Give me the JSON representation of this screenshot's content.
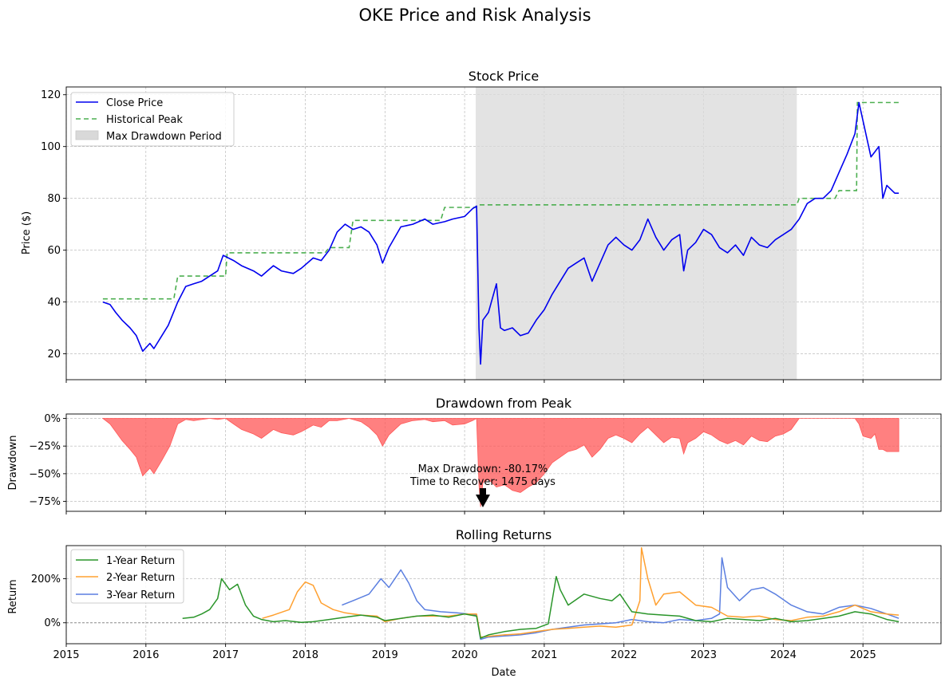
{
  "figure": {
    "title": "OKE Price and Risk Analysis",
    "xlabel": "Date"
  },
  "colors": {
    "close": "#0000ee",
    "peak": "#4caf50",
    "shade": "#d9d9d9",
    "drawdown": "#ff5555",
    "ret1": "#2a952a",
    "ret2": "#ffa030",
    "ret3": "#5b7fe0",
    "grid": "#b0b0b0"
  },
  "chart_data": [
    {
      "type": "line",
      "title": "Stock Price",
      "ylabel": "Price ($)",
      "xlim": [
        2015.0,
        2025.98
      ],
      "ylim": [
        10,
        123
      ],
      "yticks": [
        20,
        40,
        60,
        80,
        100,
        120
      ],
      "xticks": [
        2015,
        2016,
        2017,
        2018,
        2019,
        2020,
        2021,
        2022,
        2023,
        2024,
        2025
      ],
      "grid": true,
      "legend_position": "top-left",
      "legend": [
        "Close Price",
        "Historical Peak",
        "Max Drawdown Period"
      ],
      "shaded_region": {
        "name": "Max Drawdown Period",
        "x": [
          2020.14,
          2024.17
        ]
      },
      "series": [
        {
          "name": "Close Price",
          "x": [
            2015.46,
            2015.55,
            2015.62,
            2015.7,
            2015.8,
            2015.88,
            2015.96,
            2016.05,
            2016.1,
            2016.2,
            2016.28,
            2016.4,
            2016.5,
            2016.6,
            2016.7,
            2016.8,
            2016.9,
            2016.97,
            2017.1,
            2017.2,
            2017.35,
            2017.45,
            2017.6,
            2017.7,
            2017.85,
            2017.95,
            2018.1,
            2018.2,
            2018.3,
            2018.4,
            2018.5,
            2018.6,
            2018.7,
            2018.8,
            2018.9,
            2018.97,
            2019.05,
            2019.2,
            2019.35,
            2019.5,
            2019.6,
            2019.75,
            2019.85,
            2020.0,
            2020.1,
            2020.15,
            2020.18,
            2020.2,
            2020.23,
            2020.3,
            2020.4,
            2020.45,
            2020.5,
            2020.6,
            2020.7,
            2020.8,
            2020.9,
            2021.0,
            2021.1,
            2021.2,
            2021.3,
            2021.4,
            2021.5,
            2021.6,
            2021.7,
            2021.8,
            2021.9,
            2022.0,
            2022.1,
            2022.2,
            2022.3,
            2022.4,
            2022.5,
            2022.6,
            2022.7,
            2022.75,
            2022.8,
            2022.9,
            2023.0,
            2023.1,
            2023.2,
            2023.3,
            2023.4,
            2023.5,
            2023.6,
            2023.7,
            2023.8,
            2023.9,
            2024.0,
            2024.1,
            2024.2,
            2024.3,
            2024.4,
            2024.5,
            2024.6,
            2024.7,
            2024.8,
            2024.9,
            2024.95,
            2025.0,
            2025.1,
            2025.15,
            2025.2,
            2025.25,
            2025.3,
            2025.4,
            2025.45
          ],
          "values": [
            40,
            39,
            36,
            33,
            30,
            27,
            21,
            24,
            22,
            27,
            31,
            40,
            46,
            47,
            48,
            50,
            52,
            58,
            56,
            54,
            52,
            50,
            54,
            52,
            51,
            53,
            57,
            56,
            60,
            67,
            70,
            68,
            69,
            67,
            62,
            55,
            61,
            69,
            70,
            72,
            70,
            71,
            72,
            73,
            76,
            77,
            30,
            16,
            33,
            36,
            47,
            30,
            29,
            30,
            27,
            28,
            33,
            37,
            43,
            48,
            53,
            55,
            57,
            48,
            55,
            62,
            65,
            62,
            60,
            64,
            72,
            65,
            60,
            64,
            66,
            52,
            60,
            63,
            68,
            66,
            61,
            59,
            62,
            58,
            65,
            62,
            61,
            64,
            66,
            68,
            72,
            78,
            80,
            80,
            83,
            90,
            97,
            105,
            117,
            110,
            96,
            98,
            100,
            80,
            85,
            82,
            82
          ]
        },
        {
          "name": "Historical Peak",
          "x": [
            2015.46,
            2016.35,
            2016.4,
            2017.0,
            2017.02,
            2018.25,
            2018.3,
            2018.55,
            2018.6,
            2019.7,
            2019.75,
            2020.14,
            2020.16,
            2024.17,
            2024.2,
            2024.65,
            2024.7,
            2024.92,
            2024.93,
            2025.45
          ],
          "values": [
            41.2,
            41.2,
            50,
            50,
            59,
            59,
            61,
            61,
            71.5,
            71.5,
            76.5,
            76.5,
            77.5,
            77.5,
            80,
            80,
            83,
            83,
            117,
            117
          ]
        }
      ]
    },
    {
      "type": "area",
      "title": "Drawdown from Peak",
      "ylabel": "Drawdown",
      "xlim": [
        2015.0,
        2025.98
      ],
      "ylim": [
        -84,
        4
      ],
      "yticks": [
        0,
        -25,
        -50,
        -75
      ],
      "ytick_labels": [
        "0%",
        "−25%",
        "−50%",
        "−75%"
      ],
      "grid": true,
      "annotation": {
        "text": [
          "Max Drawdown: -80.17%",
          "Time to Recover: 1475 days"
        ],
        "x": 2020.2,
        "y": -80.17
      },
      "series": [
        {
          "name": "Drawdown",
          "x": [
            2015.46,
            2015.55,
            2015.62,
            2015.7,
            2015.8,
            2015.88,
            2015.96,
            2016.05,
            2016.1,
            2016.2,
            2016.3,
            2016.4,
            2016.5,
            2016.6,
            2016.7,
            2016.8,
            2016.9,
            2017.0,
            2017.1,
            2017.2,
            2017.35,
            2017.45,
            2017.6,
            2017.7,
            2017.85,
            2017.95,
            2018.1,
            2018.2,
            2018.3,
            2018.4,
            2018.55,
            2018.7,
            2018.8,
            2018.9,
            2018.97,
            2019.05,
            2019.2,
            2019.35,
            2019.5,
            2019.6,
            2019.75,
            2019.85,
            2020.0,
            2020.1,
            2020.15,
            2020.18,
            2020.2,
            2020.23,
            2020.3,
            2020.4,
            2020.5,
            2020.6,
            2020.7,
            2020.8,
            2020.9,
            2021.0,
            2021.1,
            2021.2,
            2021.3,
            2021.4,
            2021.5,
            2021.6,
            2021.7,
            2021.8,
            2021.9,
            2022.0,
            2022.1,
            2022.2,
            2022.3,
            2022.4,
            2022.5,
            2022.6,
            2022.7,
            2022.75,
            2022.8,
            2022.9,
            2023.0,
            2023.1,
            2023.2,
            2023.3,
            2023.4,
            2023.5,
            2023.6,
            2023.7,
            2023.8,
            2023.9,
            2024.0,
            2024.1,
            2024.2,
            2024.3,
            2024.5,
            2024.7,
            2024.9,
            2024.95,
            2025.0,
            2025.1,
            2025.15,
            2025.2,
            2025.25,
            2025.3,
            2025.4,
            2025.45
          ],
          "values": [
            0,
            -5,
            -12,
            -20,
            -28,
            -35,
            -52,
            -45,
            -50,
            -38,
            -25,
            -5,
            -1,
            -2,
            -1,
            0,
            -1,
            0,
            -5,
            -10,
            -14,
            -18,
            -10,
            -13,
            -15,
            -12,
            -6,
            -8,
            -2,
            -2,
            0,
            -3,
            -8,
            -15,
            -25,
            -15,
            -5,
            -2,
            -1,
            -3,
            -2,
            -6,
            -5,
            -2,
            0,
            -60,
            -80,
            -58,
            -55,
            -62,
            -60,
            -65,
            -67,
            -62,
            -58,
            -50,
            -40,
            -35,
            -30,
            -28,
            -24,
            -35,
            -28,
            -18,
            -15,
            -18,
            -22,
            -14,
            -8,
            -15,
            -22,
            -17,
            -18,
            -32,
            -22,
            -18,
            -12,
            -15,
            -20,
            -23,
            -20,
            -24,
            -16,
            -20,
            -21,
            -16,
            -14,
            -10,
            0,
            0,
            0,
            0,
            0,
            -5,
            -16,
            -18,
            -14,
            -28,
            -28,
            -30,
            -30,
            -30
          ]
        }
      ]
    },
    {
      "type": "line",
      "title": "Rolling Returns",
      "ylabel": "Return",
      "xlabel": "Date",
      "xlim": [
        2015.0,
        2025.98
      ],
      "ylim": [
        -95,
        350
      ],
      "yticks": [
        0,
        200
      ],
      "ytick_labels": [
        "0%",
        "200%"
      ],
      "xticks": [
        2015,
        2016,
        2017,
        2018,
        2019,
        2020,
        2021,
        2022,
        2023,
        2024,
        2025
      ],
      "grid": true,
      "legend_position": "top-left",
      "legend": [
        "1-Year Return",
        "2-Year Return",
        "3-Year Return"
      ],
      "series": [
        {
          "name": "1-Year Return",
          "x": [
            2016.46,
            2016.6,
            2016.7,
            2016.8,
            2016.9,
            2016.95,
            2017.05,
            2017.15,
            2017.25,
            2017.35,
            2017.45,
            2017.6,
            2017.75,
            2017.95,
            2018.1,
            2018.3,
            2018.5,
            2018.7,
            2018.9,
            2019.0,
            2019.2,
            2019.4,
            2019.6,
            2019.8,
            2020.0,
            2020.15,
            2020.2,
            2020.3,
            2020.5,
            2020.7,
            2020.9,
            2021.05,
            2021.15,
            2021.2,
            2021.3,
            2021.5,
            2021.7,
            2021.85,
            2021.95,
            2022.1,
            2022.3,
            2022.5,
            2022.7,
            2022.9,
            2023.1,
            2023.3,
            2023.5,
            2023.7,
            2023.9,
            2024.1,
            2024.3,
            2024.5,
            2024.7,
            2024.9,
            2025.1,
            2025.3,
            2025.45
          ],
          "values": [
            20,
            25,
            40,
            60,
            110,
            200,
            150,
            175,
            80,
            30,
            15,
            5,
            10,
            2,
            5,
            15,
            25,
            35,
            25,
            10,
            20,
            30,
            35,
            25,
            40,
            30,
            -70,
            -55,
            -40,
            -30,
            -25,
            -5,
            210,
            150,
            80,
            130,
            110,
            100,
            130,
            50,
            40,
            35,
            30,
            10,
            5,
            20,
            15,
            10,
            20,
            5,
            10,
            20,
            30,
            50,
            40,
            15,
            5
          ]
        },
        {
          "name": "2-Year Return",
          "x": [
            2017.46,
            2017.6,
            2017.8,
            2017.9,
            2018.0,
            2018.1,
            2018.2,
            2018.35,
            2018.5,
            2018.7,
            2018.9,
            2019.0,
            2019.2,
            2019.4,
            2019.6,
            2019.8,
            2020.0,
            2020.15,
            2020.2,
            2020.35,
            2020.5,
            2020.7,
            2020.9,
            2021.1,
            2021.3,
            2021.5,
            2021.7,
            2021.9,
            2022.1,
            2022.2,
            2022.22,
            2022.3,
            2022.4,
            2022.5,
            2022.7,
            2022.9,
            2023.1,
            2023.3,
            2023.5,
            2023.7,
            2023.9,
            2024.1,
            2024.3,
            2024.5,
            2024.7,
            2024.9,
            2025.1,
            2025.3,
            2025.45
          ],
          "values": [
            20,
            35,
            60,
            140,
            185,
            170,
            90,
            60,
            45,
            35,
            30,
            5,
            20,
            30,
            30,
            30,
            40,
            40,
            -65,
            -60,
            -55,
            -50,
            -40,
            -30,
            -25,
            -20,
            -15,
            -20,
            -10,
            100,
            340,
            200,
            80,
            130,
            140,
            80,
            70,
            30,
            25,
            30,
            15,
            10,
            25,
            30,
            50,
            80,
            50,
            40,
            35
          ]
        },
        {
          "name": "3-Year Return",
          "x": [
            2018.46,
            2018.6,
            2018.8,
            2018.95,
            2019.05,
            2019.2,
            2019.3,
            2019.4,
            2019.5,
            2019.7,
            2019.9,
            2020.05,
            2020.15,
            2020.2,
            2020.3,
            2020.5,
            2020.7,
            2020.9,
            2021.1,
            2021.3,
            2021.5,
            2021.7,
            2021.9,
            2022.1,
            2022.3,
            2022.5,
            2022.7,
            2022.9,
            2023.1,
            2023.2,
            2023.23,
            2023.3,
            2023.45,
            2023.6,
            2023.75,
            2023.9,
            2024.1,
            2024.3,
            2024.5,
            2024.7,
            2024.9,
            2025.1,
            2025.3,
            2025.45
          ],
          "values": [
            80,
            100,
            130,
            200,
            160,
            240,
            180,
            100,
            60,
            50,
            45,
            40,
            35,
            -75,
            -65,
            -60,
            -55,
            -45,
            -30,
            -20,
            -10,
            -5,
            0,
            15,
            5,
            0,
            15,
            10,
            20,
            40,
            295,
            160,
            100,
            150,
            160,
            130,
            80,
            50,
            40,
            70,
            80,
            65,
            40,
            20
          ]
        }
      ]
    }
  ]
}
